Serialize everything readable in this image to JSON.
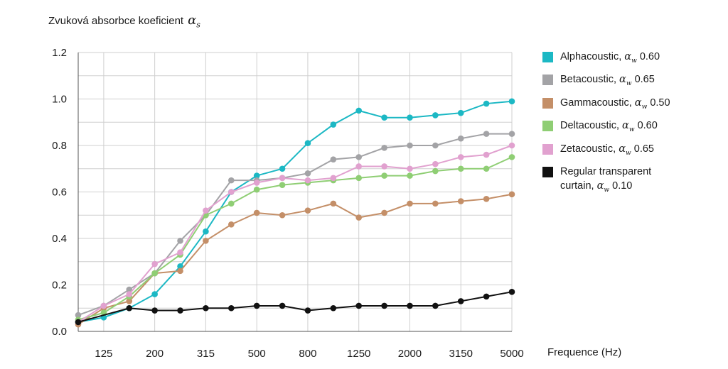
{
  "chart_data": {
    "type": "line",
    "title": "",
    "ylabel": "Zvuková absorbce koeficient",
    "ylabel_symbol": "α",
    "ylabel_subscript": "s",
    "xlabel": "Frequence (Hz)",
    "ylim": [
      0,
      1.2
    ],
    "yticks": [
      "0.0",
      "0.2",
      "0.4",
      "0.6",
      "0.8",
      "1.0",
      "1.2"
    ],
    "x": [
      100,
      125,
      160,
      200,
      250,
      315,
      400,
      500,
      630,
      800,
      1000,
      1250,
      1600,
      2000,
      2500,
      3150,
      4000,
      5000
    ],
    "xtick_labels": [
      "125",
      "200",
      "315",
      "500",
      "800",
      "1250",
      "2000",
      "3150",
      "5000"
    ],
    "grid": true,
    "legend_position": "right",
    "series": [
      {
        "name": "Alphacoustic,",
        "rating_symbol": "α",
        "rating_subscript": "w",
        "rating": "0.60",
        "color": "#1cb8c4",
        "values": [
          0.04,
          0.06,
          0.1,
          0.16,
          0.28,
          0.43,
          0.6,
          0.67,
          0.7,
          0.81,
          0.89,
          0.95,
          0.92,
          0.92,
          0.93,
          0.94,
          0.98,
          0.99
        ]
      },
      {
        "name": "Betacoustic,",
        "rating_symbol": "α",
        "rating_subscript": "w",
        "rating": "0.65",
        "color": "#a3a3a6",
        "values": [
          0.07,
          0.11,
          0.18,
          0.25,
          0.39,
          0.5,
          0.65,
          0.65,
          0.66,
          0.68,
          0.74,
          0.75,
          0.79,
          0.8,
          0.8,
          0.83,
          0.85,
          0.85
        ]
      },
      {
        "name": "Gammacoustic,",
        "rating_symbol": "α",
        "rating_subscript": "w",
        "rating": "0.50",
        "color": "#c48f68",
        "values": [
          0.03,
          0.1,
          0.13,
          0.25,
          0.26,
          0.39,
          0.46,
          0.51,
          0.5,
          0.52,
          0.55,
          0.49,
          0.51,
          0.55,
          0.55,
          0.56,
          0.57,
          0.59
        ]
      },
      {
        "name": "Deltacoustic,",
        "rating_symbol": "α",
        "rating_subscript": "w",
        "rating": "0.60",
        "color": "#8fce74",
        "values": [
          0.05,
          0.08,
          0.15,
          0.25,
          0.33,
          0.5,
          0.55,
          0.61,
          0.63,
          0.64,
          0.65,
          0.66,
          0.67,
          0.67,
          0.69,
          0.7,
          0.7,
          0.75
        ]
      },
      {
        "name": "Zetacoustic,",
        "rating_symbol": "α",
        "rating_subscript": "w",
        "rating": "0.65",
        "color": "#e1a1cf",
        "values": [
          0.04,
          0.11,
          0.16,
          0.29,
          0.34,
          0.52,
          0.6,
          0.64,
          0.66,
          0.65,
          0.66,
          0.71,
          0.71,
          0.7,
          0.72,
          0.75,
          0.76,
          0.8
        ]
      },
      {
        "name": "Regular transparent curtain,",
        "rating_symbol": "α",
        "rating_subscript": "w",
        "rating": "0.10",
        "color": "#111111",
        "values": [
          0.04,
          null,
          0.1,
          0.09,
          0.09,
          0.1,
          0.1,
          0.11,
          0.11,
          0.09,
          0.1,
          0.11,
          0.11,
          0.11,
          0.11,
          0.13,
          0.15,
          0.17
        ]
      }
    ]
  }
}
